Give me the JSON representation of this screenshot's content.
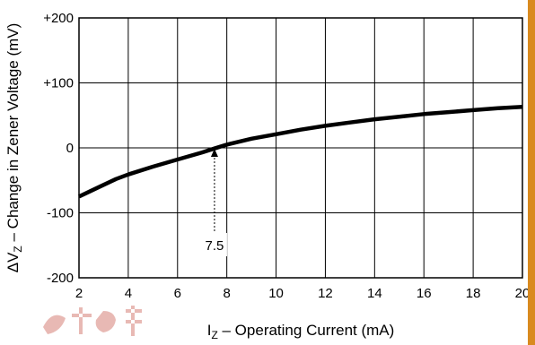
{
  "chart_data": {
    "type": "line",
    "xlabel": "I",
    "xlabel_sub": "Z",
    "xlabel_rest": " – Operating Current (mA)",
    "ylabel": "ΔV",
    "ylabel_sub": "Z",
    "ylabel_rest": " – Change in Zener Voltage (mV)",
    "xlim": [
      2,
      20
    ],
    "ylim": [
      -200,
      200
    ],
    "x_ticks": [
      2,
      4,
      6,
      8,
      10,
      12,
      14,
      16,
      18,
      20
    ],
    "x_tick_labels": [
      "2",
      "4",
      "6",
      "8",
      "10",
      "12",
      "14",
      "16",
      "18",
      "20"
    ],
    "y_ticks": [
      -200,
      -100,
      0,
      100,
      200
    ],
    "y_tick_labels": [
      "-200",
      "-100",
      "0",
      "+100",
      "+200"
    ],
    "grid": true,
    "series": [
      {
        "x": [
          2,
          2.5,
          3,
          3.5,
          4,
          5,
          6,
          7,
          7.5,
          8,
          9,
          10,
          11,
          12,
          13,
          14,
          15,
          16,
          17,
          18,
          19,
          20
        ],
        "y": [
          -75,
          -66,
          -57,
          -48,
          -41,
          -29,
          -18,
          -7,
          -1,
          5,
          14,
          21,
          28,
          34,
          39,
          44,
          48,
          52,
          55,
          58,
          61,
          63
        ]
      }
    ],
    "annotations": [
      {
        "text": "7.5",
        "x": 7.5,
        "y": 0
      }
    ]
  },
  "colors": {
    "line": "#000000",
    "grid": "#000000",
    "accent_bar": "#d98a1f",
    "watermark": "#c0392b"
  }
}
